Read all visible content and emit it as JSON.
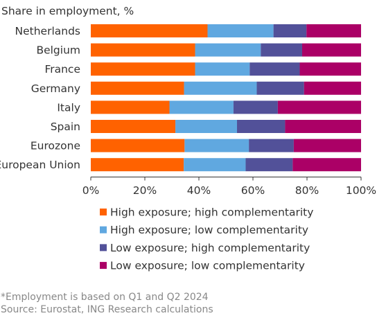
{
  "chart_data": {
    "type": "bar",
    "orientation": "horizontal",
    "stacked": true,
    "title": "Share in employment, %",
    "categories": [
      "Netherlands",
      "Belgium",
      "France",
      "Germany",
      "Italy",
      "Spain",
      "Eurozone",
      "European Union"
    ],
    "series": [
      {
        "name": "High exposure; high complementarity",
        "color": "#ff6200",
        "values": [
          43.2,
          38.6,
          38.6,
          34.5,
          29.1,
          31.3,
          34.7,
          34.4
        ]
      },
      {
        "name": "High exposure; low complementarity",
        "color": "#60a8e0",
        "values": [
          24.4,
          24.3,
          20.2,
          26.9,
          23.7,
          22.8,
          23.8,
          22.9
        ]
      },
      {
        "name": "Low exposure; high complementarity",
        "color": "#525199",
        "values": [
          12.2,
          15.3,
          18.5,
          17.5,
          16.4,
          17.8,
          16.6,
          17.4
        ]
      },
      {
        "name": "Low exposure; low complementarity",
        "color": "#ab0066",
        "values": [
          20.2,
          21.8,
          22.7,
          21.1,
          30.8,
          28.1,
          24.9,
          25.3
        ]
      }
    ],
    "xlim": [
      0,
      100
    ],
    "xticks": [
      "0%",
      "20%",
      "40%",
      "60%",
      "80%",
      "100%"
    ],
    "grid": false,
    "legend_position": "bottom"
  },
  "footnotes": {
    "note": "*Employment is based on Q1 and Q2 2024",
    "source": "Source: Eurostat, ING Research calculations"
  }
}
